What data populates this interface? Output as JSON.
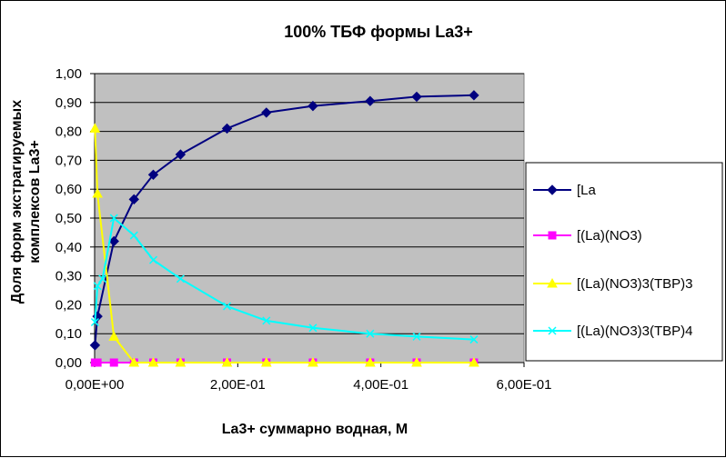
{
  "chart_data": {
    "type": "line",
    "title": "100%  ТБФ  формы La3+",
    "xlabel": "La3+ суммарно  водная, М",
    "ylabel_lines": [
      "Доля форм экстрагируемых",
      "комплексов La3+"
    ],
    "xlim": [
      0,
      0.6
    ],
    "ylim": [
      0,
      1.0
    ],
    "x_ticks": [
      0,
      0.2,
      0.4,
      0.6
    ],
    "x_tick_labels": [
      "0,00E+00",
      "2,00E-01",
      "4,00E-01",
      "6,00E-01"
    ],
    "y_ticks": [
      0,
      0.1,
      0.2,
      0.3,
      0.4,
      0.5,
      0.6,
      0.7,
      0.8,
      0.9,
      1.0
    ],
    "y_tick_labels": [
      "0,00",
      "0,10",
      "0,20",
      "0,30",
      "0,40",
      "0,50",
      "0,60",
      "0,70",
      "0,80",
      "0,90",
      "1,00"
    ],
    "grid": "horizontal",
    "plot_background": "#c0c0c0",
    "legend_position": "right",
    "series": [
      {
        "name": "[La",
        "color": "#000080",
        "marker": "diamond",
        "points": [
          [
            0.0005,
            0.06
          ],
          [
            0.004,
            0.16
          ],
          [
            0.027,
            0.42
          ],
          [
            0.055,
            0.565
          ],
          [
            0.082,
            0.65
          ],
          [
            0.12,
            0.72
          ],
          [
            0.185,
            0.81
          ],
          [
            0.24,
            0.865
          ],
          [
            0.305,
            0.888
          ],
          [
            0.385,
            0.905
          ],
          [
            0.45,
            0.92
          ],
          [
            0.53,
            0.925
          ]
        ]
      },
      {
        "name": "[(La)(NO3)",
        "color": "#ff00ff",
        "marker": "square",
        "points": [
          [
            0.0005,
            0.0
          ],
          [
            0.004,
            0.0
          ],
          [
            0.027,
            0.0
          ],
          [
            0.055,
            0.0
          ],
          [
            0.082,
            0.0
          ],
          [
            0.12,
            0.0
          ],
          [
            0.185,
            0.0
          ],
          [
            0.24,
            0.0
          ],
          [
            0.305,
            0.0
          ],
          [
            0.385,
            0.0
          ],
          [
            0.45,
            0.0
          ],
          [
            0.53,
            0.0
          ]
        ]
      },
      {
        "name": "[(La)(NO3)3(TBP)3",
        "color": "#ffff00",
        "marker": "triangle",
        "points": [
          [
            0.0005,
            0.81
          ],
          [
            0.004,
            0.585
          ],
          [
            0.027,
            0.09
          ],
          [
            0.055,
            0.0
          ],
          [
            0.082,
            0.0
          ],
          [
            0.12,
            0.0
          ],
          [
            0.185,
            0.0
          ],
          [
            0.24,
            0.0
          ],
          [
            0.305,
            0.0
          ],
          [
            0.385,
            0.0
          ],
          [
            0.45,
            0.0
          ],
          [
            0.53,
            0.0
          ]
        ]
      },
      {
        "name": "[(La)(NO3)3(TBP)4",
        "color": "#00ffff",
        "marker": "x",
        "points": [
          [
            0.0005,
            0.14
          ],
          [
            0.004,
            0.265
          ],
          [
            0.011,
            0.29
          ],
          [
            0.027,
            0.5
          ],
          [
            0.055,
            0.44
          ],
          [
            0.082,
            0.355
          ],
          [
            0.12,
            0.29
          ],
          [
            0.185,
            0.195
          ],
          [
            0.24,
            0.145
          ],
          [
            0.305,
            0.12
          ],
          [
            0.385,
            0.1
          ],
          [
            0.45,
            0.09
          ],
          [
            0.53,
            0.08
          ]
        ]
      }
    ]
  }
}
